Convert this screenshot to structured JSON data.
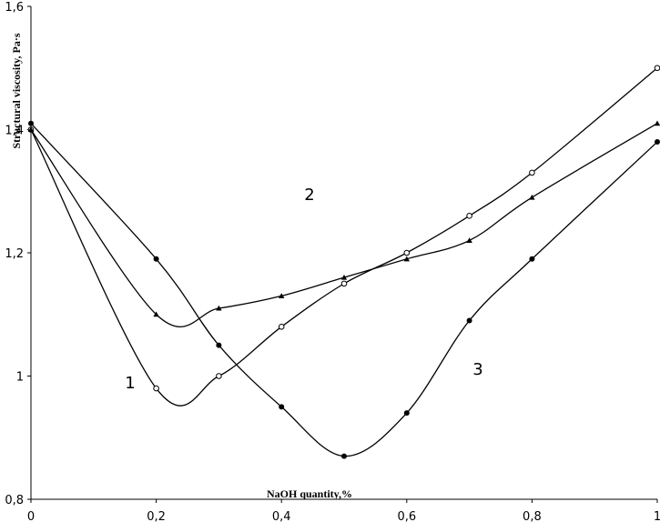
{
  "chart_data": {
    "type": "line",
    "xlabel": "NaOH quantity,%",
    "ylabel": "Structural viscosity, Pa·s",
    "xlim": [
      0,
      1
    ],
    "ylim": [
      0.8,
      1.6
    ],
    "x_ticks": [
      "0",
      "0,2",
      "0,4",
      "0,6",
      "0,8",
      "1"
    ],
    "y_ticks": [
      "0,8",
      "1",
      "1,2",
      "1,4",
      "1,6"
    ],
    "grid": false,
    "series": [
      {
        "name": "1",
        "marker": "open-circle",
        "x": [
          0,
          0.2,
          0.3,
          0.4,
          0.5,
          0.6,
          0.7,
          0.8,
          1.0
        ],
        "y": [
          1.4,
          0.98,
          1.0,
          1.08,
          1.15,
          1.2,
          1.26,
          1.33,
          1.5
        ]
      },
      {
        "name": "2",
        "marker": "triangle",
        "x": [
          0,
          0.2,
          0.3,
          0.4,
          0.5,
          0.6,
          0.7,
          0.8,
          1.0
        ],
        "y": [
          1.4,
          1.1,
          1.11,
          1.13,
          1.16,
          1.19,
          1.22,
          1.29,
          1.41
        ]
      },
      {
        "name": "3",
        "marker": "filled-circle",
        "x": [
          0,
          0.2,
          0.3,
          0.4,
          0.5,
          0.6,
          0.7,
          0.8,
          1.0
        ],
        "y": [
          1.41,
          1.19,
          1.05,
          0.95,
          0.87,
          0.94,
          1.09,
          1.19,
          1.38
        ]
      }
    ]
  }
}
